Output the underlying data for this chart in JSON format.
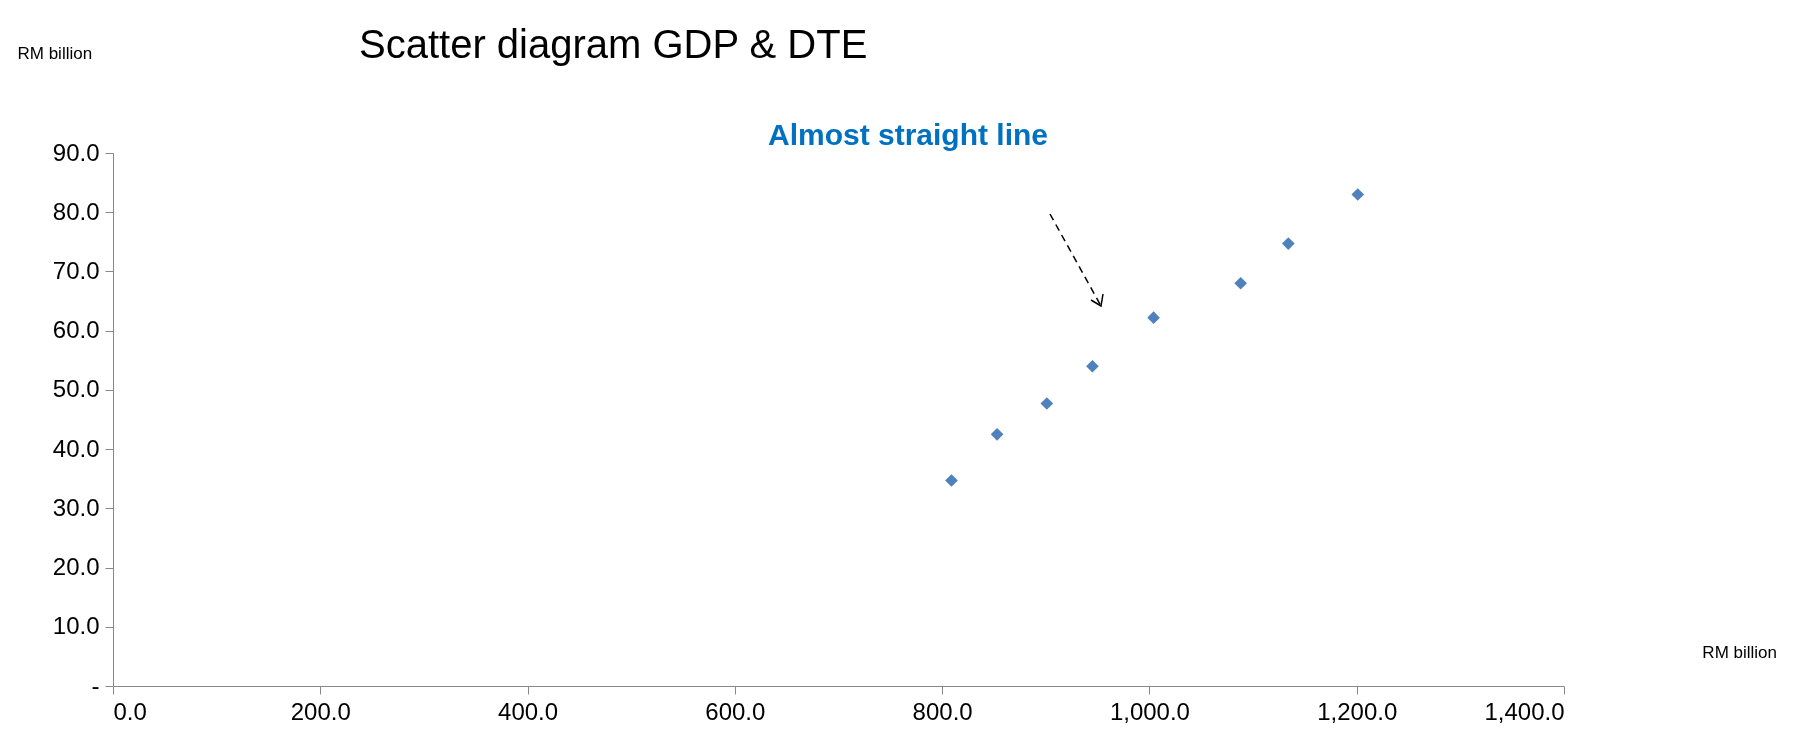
{
  "chart_data": {
    "type": "scatter",
    "title": "Scatter diagram GDP & DTE",
    "ylabel": "RM billion",
    "annotations": [
      "Almost straight line",
      "RM billion"
    ],
    "x": [
      809,
      853,
      901,
      945,
      1004,
      1088,
      1134,
      1201
    ],
    "series": [
      {
        "color": "#4f81bd",
        "values": [
          34.7,
          42.5,
          47.7,
          54.0,
          62.2,
          68.0,
          74.7,
          83.0
        ]
      }
    ],
    "marker": "diamond",
    "grid": false,
    "legend": false,
    "xlim": [
      0,
      1400
    ],
    "xticks": [
      {
        "value": 0,
        "label": "0.0"
      },
      {
        "value": 200,
        "label": "200.0"
      },
      {
        "value": 400,
        "label": "400.0"
      },
      {
        "value": 600,
        "label": "600.0"
      },
      {
        "value": 800,
        "label": "800.0"
      },
      {
        "value": 1000,
        "label": "1,000.0"
      },
      {
        "value": 1200,
        "label": "1,200.0"
      },
      {
        "value": 1400,
        "label": "1,400.0"
      }
    ],
    "ylim": [
      0,
      90
    ],
    "yticks": [
      {
        "value": 0,
        "label": "-"
      },
      {
        "value": 10,
        "label": "10.0"
      },
      {
        "value": 20,
        "label": "20.0"
      },
      {
        "value": 30,
        "label": "30.0"
      },
      {
        "value": 40,
        "label": "40.0"
      },
      {
        "value": 50,
        "label": "50.0"
      },
      {
        "value": 60,
        "label": "60.0"
      },
      {
        "value": 70,
        "label": "70.0"
      },
      {
        "value": 80,
        "label": "80.0"
      },
      {
        "value": 90,
        "label": "90.0"
      }
    ]
  }
}
